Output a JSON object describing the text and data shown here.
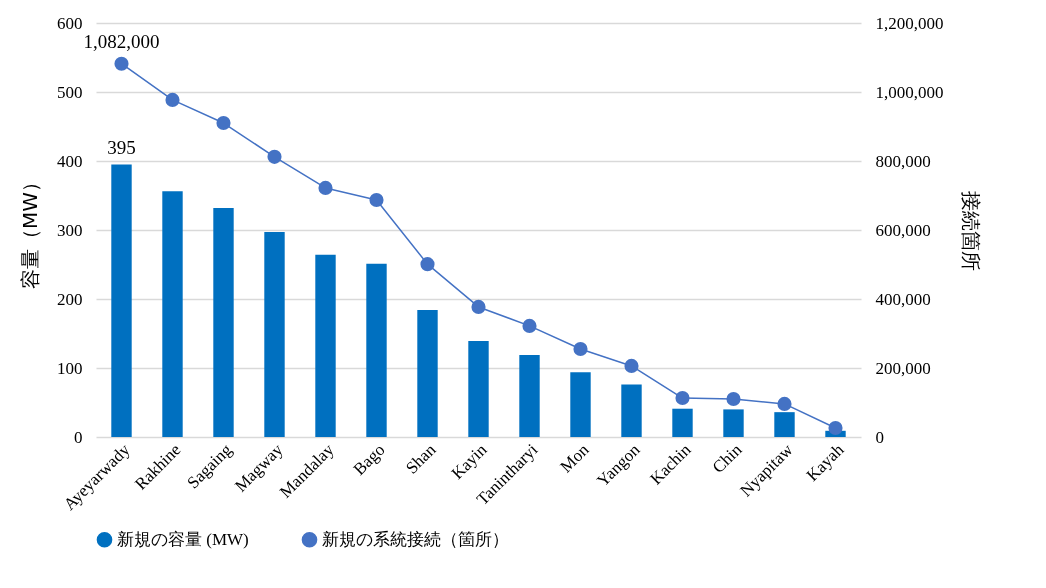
{
  "chart_data": {
    "type": "bar",
    "categories": [
      "Ayeyarwady",
      "Rakhine",
      "Sagaing",
      "Magway",
      "Mandalay",
      "Bago",
      "Shan",
      "Kayin",
      "Tanintharyi",
      "Mon",
      "Yangon",
      "Kachin",
      "Chin",
      "Nyapitaw",
      "Kayah"
    ],
    "ylabel": "容量（MW）",
    "y2label": "接続箇所",
    "ylim": [
      0,
      600
    ],
    "yticks": [
      0,
      100,
      200,
      300,
      400,
      500,
      600
    ],
    "y2lim": [
      0,
      1200000
    ],
    "y2ticks": [
      0,
      {
        "value": 200000,
        "label": "200,000"
      },
      {
        "value": 400000,
        "label": "400,000"
      },
      {
        "value": 600000,
        "label": "600,000"
      },
      {
        "value": 800000,
        "label": "800,000"
      },
      {
        "value": 1000000,
        "label": "1,000,000"
      },
      {
        "value": 1200000,
        "label": "1,200,000"
      }
    ],
    "grid": "y",
    "legend": "bottom",
    "marker": "circle",
    "line_style": "solid",
    "series": [
      {
        "name": "新規の容量 (MW)",
        "color": "#0070c0",
        "values": [
          395,
          356,
          332,
          297,
          264,
          251,
          184,
          139,
          119,
          94,
          76,
          41,
          40,
          36,
          9
        ],
        "value_labels": [
          "395",
          null,
          null,
          null,
          null,
          null,
          null,
          null,
          null,
          null,
          null,
          null,
          null,
          null,
          null
        ]
      },
      {
        "name": "新規の系統接続（箇所）",
        "type": "line",
        "axis": "y2",
        "color": "#4472c4",
        "values": [
          1082000,
          977000,
          910000,
          812000,
          722000,
          687000,
          501000,
          377000,
          322000,
          255000,
          206000,
          113000,
          110000,
          96000,
          26000
        ],
        "value_labels": [
          "1,082,000",
          null,
          null,
          null,
          null,
          null,
          null,
          null,
          null,
          null,
          null,
          null,
          null,
          null,
          null
        ]
      }
    ]
  }
}
